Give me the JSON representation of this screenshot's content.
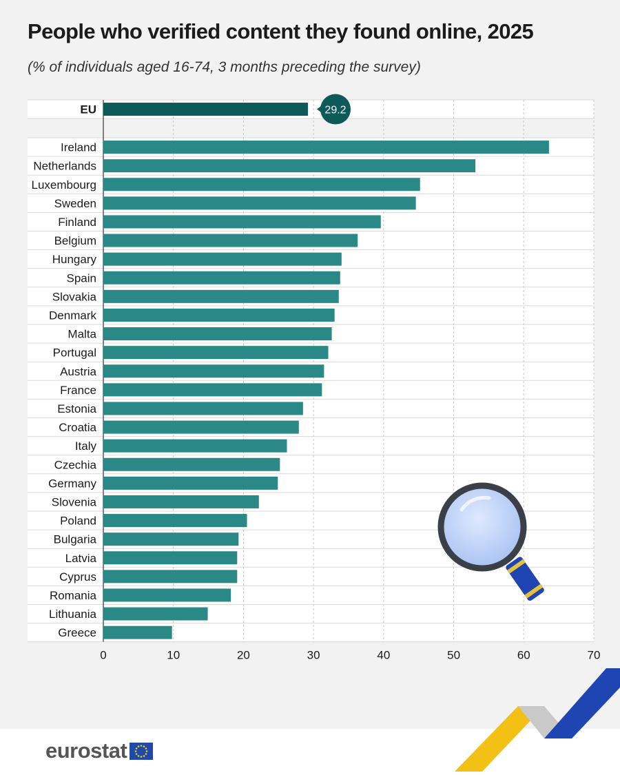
{
  "title": "People who verified content they found online, 2025",
  "subtitle": "(% of individuals aged 16-74, 3 months preceding the survey)",
  "colors": {
    "bar": "#2a8986",
    "eu_bar": "#0e5a5a",
    "callout": "#0e5a5a",
    "background": "#f2f2f2",
    "plot_background": "#ffffff",
    "eu_flag": "#1f4aa8",
    "eu_stars": "#f5c518"
  },
  "brand": {
    "logo_text": "eurostat",
    "logo_icon": "eu-flag-icon"
  },
  "decor_icons": [
    "magnifier-icon",
    "brand-ribbon-icon"
  ],
  "chart_data": {
    "type": "bar",
    "orientation": "horizontal",
    "highlight": {
      "category": "EU",
      "value": 29.2,
      "label": "29.2"
    },
    "categories": [
      "Ireland",
      "Netherlands",
      "Luxembourg",
      "Sweden",
      "Finland",
      "Belgium",
      "Hungary",
      "Spain",
      "Slovakia",
      "Denmark",
      "Malta",
      "Portugal",
      "Austria",
      "France",
      "Estonia",
      "Croatia",
      "Italy",
      "Czechia",
      "Germany",
      "Slovenia",
      "Poland",
      "Bulgaria",
      "Latvia",
      "Cyprus",
      "Romania",
      "Lithuania",
      "Greece"
    ],
    "values": [
      63.6,
      53.1,
      45.2,
      44.6,
      39.6,
      36.3,
      34.0,
      33.8,
      33.6,
      33.0,
      32.6,
      32.1,
      31.5,
      31.2,
      28.5,
      27.9,
      26.2,
      25.2,
      24.9,
      22.2,
      20.5,
      19.3,
      19.1,
      19.1,
      18.2,
      14.9,
      9.8
    ],
    "xlim": [
      0,
      70
    ],
    "xticks": [
      0,
      10,
      20,
      30,
      40,
      50,
      60,
      70
    ],
    "grid": "vertical dashed",
    "xlabel": "",
    "ylabel": ""
  }
}
